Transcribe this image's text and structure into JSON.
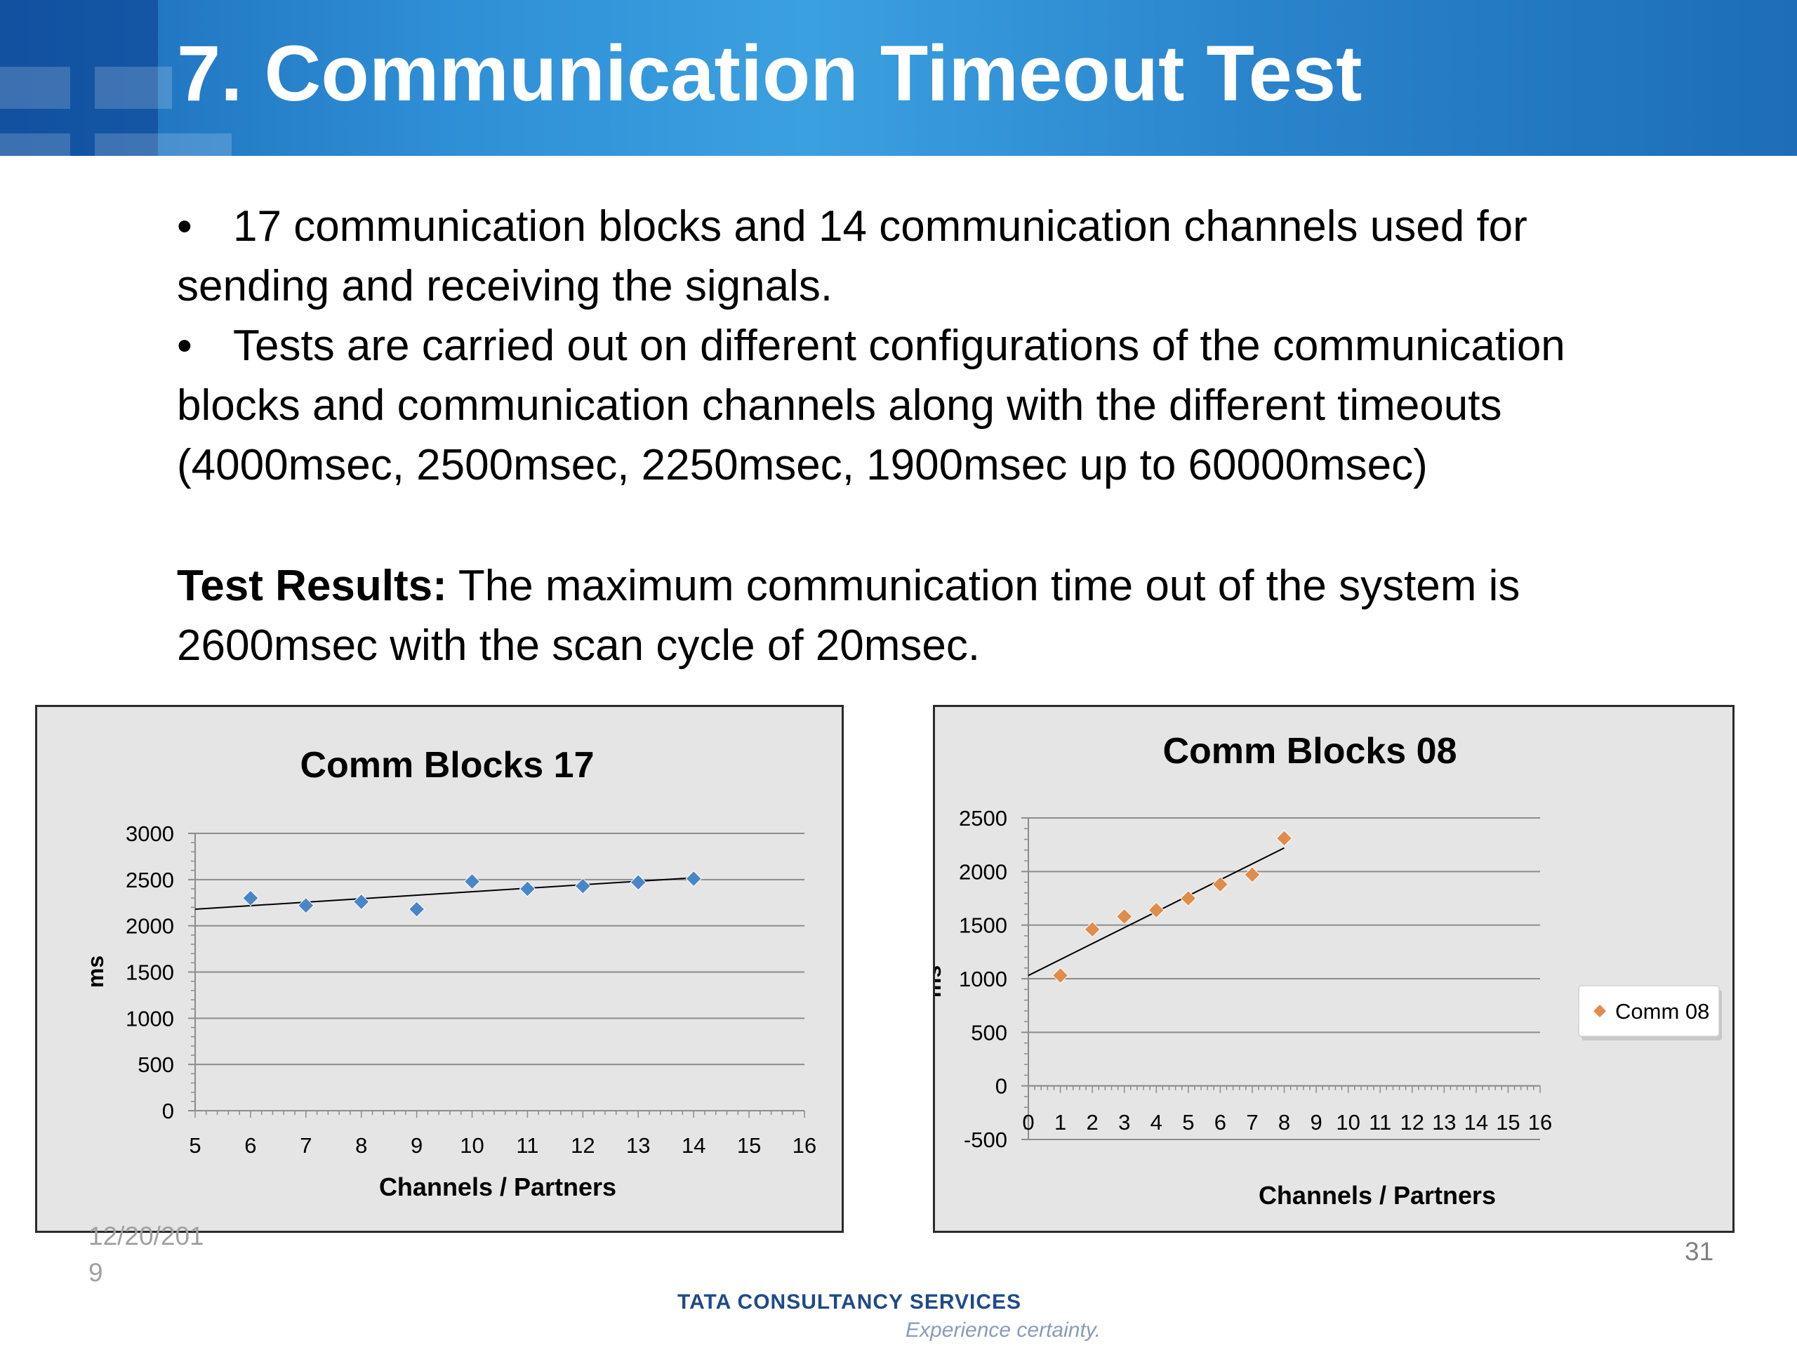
{
  "slide": {
    "title": "7. Communication Timeout Test",
    "bullets": [
      {
        "line1": "17 communication blocks and 14 communication channels used for",
        "line2": "sending and receiving the signals."
      },
      {
        "line1": "Tests are carried out on different configurations of the communication",
        "line2": "blocks and communication channels along with the different timeouts",
        "line3": "(4000msec, 2500msec, 2250msec, 1900msec up to 60000msec)"
      }
    ],
    "result_label": "Test Results:",
    "result_text_1": " The maximum communication time out of the system is",
    "result_text_2": "2600msec with the scan cycle of 20msec.",
    "footer_date_1": "12/20/201",
    "footer_date_2": "9",
    "page_number": "31",
    "logo_text": "TATA CONSULTANCY SERVICES",
    "logo_tagline": "Experience certainty."
  },
  "colors": {
    "header": "#2a84cc",
    "series1": "#4a86c5",
    "series2": "#e08c4a",
    "chart_bg": "#e6e5e6"
  },
  "chart_data": [
    {
      "type": "scatter",
      "title": "Comm Blocks 17",
      "xlabel": "Channels / Partners",
      "ylabel": "ms",
      "xlim": [
        5,
        16
      ],
      "ylim": [
        0,
        3000
      ],
      "xticks": [
        5,
        6,
        7,
        8,
        9,
        10,
        11,
        12,
        13,
        14,
        15,
        16
      ],
      "yticks": [
        0,
        500,
        1000,
        1500,
        2000,
        2500,
        3000
      ],
      "grid": true,
      "legend": "none",
      "trendline": {
        "type": "linear",
        "x": [
          5,
          14
        ],
        "y": [
          2180,
          2520
        ]
      },
      "series": [
        {
          "marker": "diamond",
          "color": "#4a86c5",
          "x": [
            6,
            7,
            8,
            9,
            10,
            11,
            12,
            13,
            14
          ],
          "y": [
            2300,
            2220,
            2260,
            2180,
            2480,
            2400,
            2430,
            2470,
            2510
          ]
        }
      ]
    },
    {
      "type": "scatter",
      "title": "Comm Blocks 08",
      "xlabel": "Channels / Partners",
      "ylabel": "ms",
      "xlim": [
        0,
        16
      ],
      "ylim": [
        -500,
        2500
      ],
      "xticks": [
        0,
        1,
        2,
        3,
        4,
        5,
        6,
        7,
        8,
        9,
        10,
        11,
        12,
        13,
        14,
        15,
        16
      ],
      "yticks": [
        -500,
        0,
        500,
        1000,
        1500,
        2000,
        2500
      ],
      "grid": true,
      "legend": "right",
      "trendline": {
        "type": "linear",
        "x": [
          0,
          8
        ],
        "y": [
          1030,
          2220
        ]
      },
      "series": [
        {
          "name": "Comm 08",
          "marker": "diamond",
          "color": "#e08c4a",
          "x": [
            1,
            2,
            3,
            4,
            5,
            6,
            7,
            8
          ],
          "y": [
            1030,
            1460,
            1580,
            1640,
            1750,
            1880,
            1970,
            2310
          ]
        }
      ]
    }
  ]
}
